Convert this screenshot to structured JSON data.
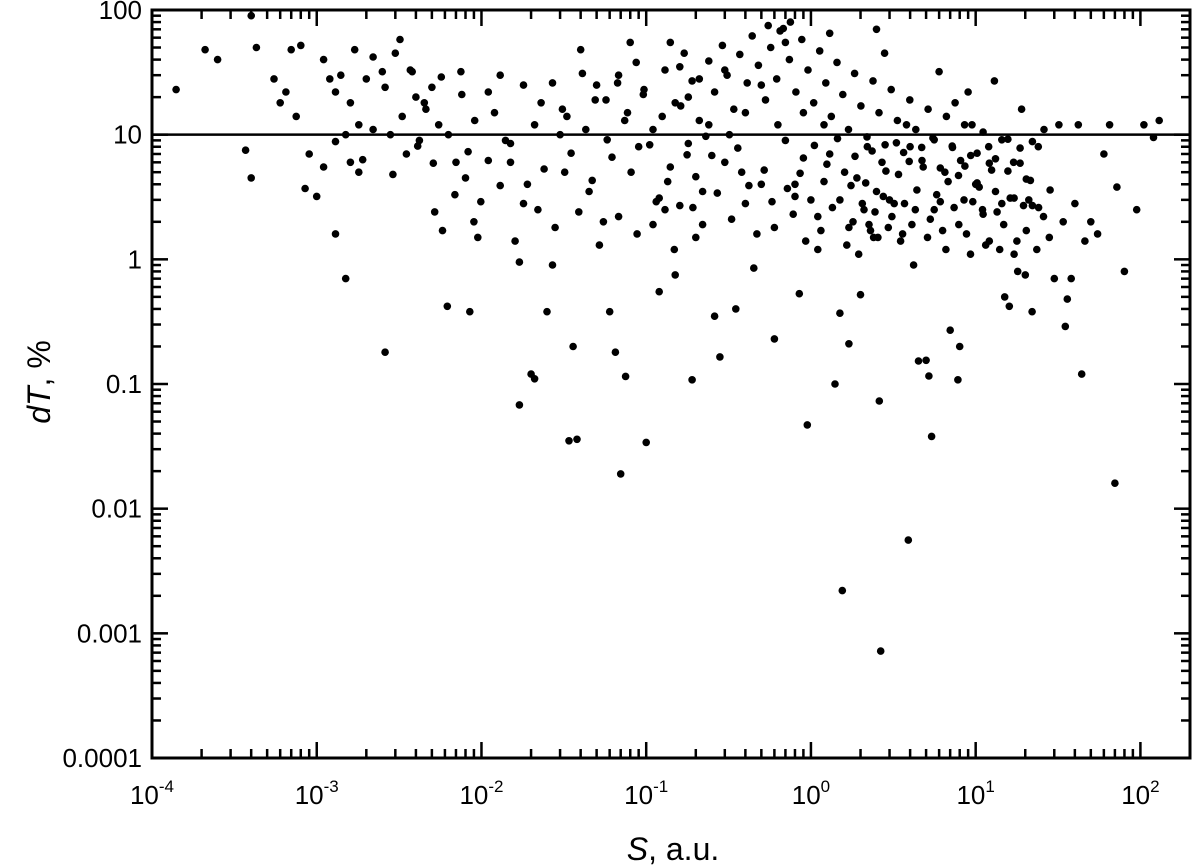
{
  "chart_data": {
    "type": "scatter",
    "xlabel": {
      "var": "S",
      "rest": ", a.u."
    },
    "ylabel": {
      "var": "dT",
      "rest": ", %"
    },
    "xscale": "log",
    "yscale": "log",
    "xlim": [
      0.0001,
      200
    ],
    "ylim": [
      0.0001,
      100
    ],
    "x_ticks": [
      {
        "base": "10",
        "exp": "-4"
      },
      {
        "base": "10",
        "exp": "-3"
      },
      {
        "base": "10",
        "exp": "-2"
      },
      {
        "base": "10",
        "exp": "-1"
      },
      {
        "base": "10",
        "exp": "0"
      },
      {
        "base": "10",
        "exp": "1"
      },
      {
        "base": "10",
        "exp": "2"
      }
    ],
    "y_ticks": [
      "0.0001",
      "0.001",
      "0.01",
      "0.1",
      "1",
      "10",
      "100"
    ],
    "reference_line": {
      "y": 10
    },
    "grid": false,
    "marker_color": "#000000",
    "points": [
      [
        0.00014,
        23
      ],
      [
        0.00021,
        48
      ],
      [
        0.00025,
        40
      ],
      [
        0.00037,
        7.5
      ],
      [
        0.0004,
        90
      ],
      [
        0.0004,
        4.5
      ],
      [
        0.00043,
        50
      ],
      [
        0.00055,
        28
      ],
      [
        0.0006,
        18
      ],
      [
        0.00065,
        22
      ],
      [
        0.0007,
        48
      ],
      [
        0.00075,
        14
      ],
      [
        0.0008,
        52
      ],
      [
        0.00085,
        3.7
      ],
      [
        0.0009,
        7
      ],
      [
        0.001,
        3.2
      ],
      [
        0.0011,
        40
      ],
      [
        0.0012,
        28
      ],
      [
        0.0013,
        22
      ],
      [
        0.0014,
        30
      ],
      [
        0.0015,
        10
      ],
      [
        0.0016,
        6
      ],
      [
        0.0017,
        48
      ],
      [
        0.0018,
        12
      ],
      [
        0.0013,
        1.6
      ],
      [
        0.0015,
        0.7
      ],
      [
        0.0018,
        5
      ],
      [
        0.002,
        28
      ],
      [
        0.0022,
        42
      ],
      [
        0.0025,
        32
      ],
      [
        0.0026,
        0.18
      ],
      [
        0.0028,
        10
      ],
      [
        0.003,
        45
      ],
      [
        0.0032,
        58
      ],
      [
        0.0035,
        7
      ],
      [
        0.0038,
        32
      ],
      [
        0.004,
        20
      ],
      [
        0.0042,
        9
      ],
      [
        0.0045,
        18
      ],
      [
        0.005,
        24
      ],
      [
        0.0052,
        2.4
      ],
      [
        0.0055,
        12
      ],
      [
        0.0058,
        1.7
      ],
      [
        0.0062,
        0.42
      ],
      [
        0.007,
        6
      ],
      [
        0.0075,
        32
      ],
      [
        0.008,
        4.5
      ],
      [
        0.0085,
        0.38
      ],
      [
        0.009,
        2
      ],
      [
        0.0095,
        1.5
      ],
      [
        0.011,
        22
      ],
      [
        0.012,
        15
      ],
      [
        0.013,
        30
      ],
      [
        0.014,
        9
      ],
      [
        0.015,
        6
      ],
      [
        0.016,
        1.4
      ],
      [
        0.017,
        0.95
      ],
      [
        0.017,
        0.068
      ],
      [
        0.018,
        25
      ],
      [
        0.019,
        4
      ],
      [
        0.02,
        0.12
      ],
      [
        0.021,
        0.11
      ],
      [
        0.022,
        2.5
      ],
      [
        0.023,
        18
      ],
      [
        0.025,
        0.38
      ],
      [
        0.027,
        0.9
      ],
      [
        0.03,
        10
      ],
      [
        0.032,
        5
      ],
      [
        0.034,
        0.035
      ],
      [
        0.036,
        0.2
      ],
      [
        0.038,
        0.036
      ],
      [
        0.04,
        48
      ],
      [
        0.045,
        3.5
      ],
      [
        0.05,
        25
      ],
      [
        0.055,
        2
      ],
      [
        0.06,
        0.38
      ],
      [
        0.065,
        0.18
      ],
      [
        0.068,
        30
      ],
      [
        0.07,
        0.019
      ],
      [
        0.075,
        0.115
      ],
      [
        0.08,
        55
      ],
      [
        0.09,
        8
      ],
      [
        0.1,
        0.034
      ],
      [
        0.11,
        1.9
      ],
      [
        0.12,
        0.55
      ],
      [
        0.13,
        2.5
      ],
      [
        0.14,
        55
      ],
      [
        0.15,
        0.75
      ],
      [
        0.16,
        35
      ],
      [
        0.18,
        20
      ],
      [
        0.19,
        0.108
      ],
      [
        0.2,
        1.5
      ],
      [
        0.22,
        3.5
      ],
      [
        0.24,
        12
      ],
      [
        0.26,
        0.35
      ],
      [
        0.28,
        0.165
      ],
      [
        0.3,
        33
      ],
      [
        0.32,
        10
      ],
      [
        0.35,
        0.4
      ],
      [
        0.38,
        5
      ],
      [
        0.4,
        15
      ],
      [
        0.45,
        0.85
      ],
      [
        0.5,
        25
      ],
      [
        0.55,
        75
      ],
      [
        0.6,
        0.23
      ],
      [
        0.65,
        68
      ],
      [
        0.7,
        55
      ],
      [
        0.75,
        80
      ],
      [
        0.8,
        4
      ],
      [
        0.85,
        0.53
      ],
      [
        0.9,
        15
      ],
      [
        0.95,
        0.047
      ],
      [
        1,
        3
      ],
      [
        1.1,
        1.2
      ],
      [
        1.2,
        12
      ],
      [
        1.3,
        65
      ],
      [
        1.4,
        0.1
      ],
      [
        1.5,
        0.37
      ],
      [
        1.55,
        0.0022
      ],
      [
        1.6,
        5
      ],
      [
        1.7,
        0.21
      ],
      [
        1.8,
        2
      ],
      [
        2,
        0.52
      ],
      [
        2.2,
        8
      ],
      [
        2.4,
        1.5
      ],
      [
        2.5,
        70
      ],
      [
        2.6,
        0.073
      ],
      [
        2.65,
        0.00072
      ],
      [
        2.8,
        45
      ],
      [
        3,
        3
      ],
      [
        3.2,
        2.8
      ],
      [
        3.5,
        1.4
      ],
      [
        3.8,
        12
      ],
      [
        3.9,
        0.0056
      ],
      [
        4,
        8
      ],
      [
        4.2,
        0.9
      ],
      [
        4.5,
        0.153
      ],
      [
        5,
        0.155
      ],
      [
        5.2,
        0.116
      ],
      [
        5.4,
        0.038
      ],
      [
        5.6,
        2.5
      ],
      [
        6,
        32
      ],
      [
        6.5,
        5
      ],
      [
        7,
        0.27
      ],
      [
        7.5,
        18
      ],
      [
        7.8,
        0.108
      ],
      [
        8,
        0.2
      ],
      [
        8.5,
        3
      ],
      [
        9,
        22
      ],
      [
        9.5,
        12
      ],
      [
        10,
        4
      ],
      [
        11,
        2.5
      ],
      [
        12,
        8
      ],
      [
        13,
        27
      ],
      [
        14,
        1.2
      ],
      [
        15,
        0.5
      ],
      [
        16,
        0.42
      ],
      [
        17,
        6
      ],
      [
        18,
        0.8
      ],
      [
        19,
        16
      ],
      [
        20,
        0.75
      ],
      [
        21,
        3
      ],
      [
        22,
        0.38
      ],
      [
        24,
        8
      ],
      [
        26,
        11
      ],
      [
        28,
        1.5
      ],
      [
        30,
        0.7
      ],
      [
        32,
        12
      ],
      [
        34,
        2
      ],
      [
        35,
        0.29
      ],
      [
        36,
        0.48
      ],
      [
        38,
        0.7
      ],
      [
        40,
        2.8
      ],
      [
        42,
        12
      ],
      [
        44,
        0.12
      ],
      [
        46,
        1.4
      ],
      [
        50,
        2
      ],
      [
        55,
        1.6
      ],
      [
        60,
        7
      ],
      [
        65,
        12
      ],
      [
        70,
        0.016
      ],
      [
        72,
        3.8
      ],
      [
        80,
        0.8
      ],
      [
        95,
        2.5
      ],
      [
        105,
        12
      ],
      [
        120,
        9.5
      ],
      [
        130,
        13
      ],
      [
        0.3,
        6
      ],
      [
        0.4,
        2.8
      ],
      [
        0.5,
        4
      ],
      [
        0.6,
        1.8
      ],
      [
        0.7,
        9
      ],
      [
        0.8,
        3.2
      ],
      [
        0.9,
        6.5
      ],
      [
        1.1,
        2.2
      ],
      [
        1.2,
        4.2
      ],
      [
        1.3,
        7
      ],
      [
        1.5,
        3
      ],
      [
        1.7,
        1.8
      ],
      [
        1.9,
        4.5
      ],
      [
        2.1,
        2.5
      ],
      [
        2.3,
        1.7
      ],
      [
        2.5,
        3.5
      ],
      [
        2.7,
        6
      ],
      [
        3.1,
        2.2
      ],
      [
        3.4,
        4.8
      ],
      [
        3.7,
        2.8
      ],
      [
        4.1,
        1.9
      ],
      [
        4.4,
        3.6
      ],
      [
        4.8,
        5.5
      ],
      [
        5.3,
        2.1
      ],
      [
        5.8,
        3.3
      ],
      [
        6.3,
        1.7
      ],
      [
        6.8,
        4.2
      ],
      [
        7.4,
        2.6
      ],
      [
        8.1,
        6.2
      ],
      [
        8.8,
        1.6
      ],
      [
        9.6,
        2.9
      ],
      [
        10.5,
        3.8
      ],
      [
        11.5,
        1.3
      ],
      [
        12.5,
        5.2
      ],
      [
        13.5,
        2.4
      ],
      [
        14.8,
        1.9
      ],
      [
        16.2,
        3.1
      ],
      [
        17.8,
        1.4
      ],
      [
        19.5,
        2.7
      ],
      [
        21.5,
        4.3
      ],
      [
        23.5,
        1.2
      ],
      [
        25.8,
        2.2
      ],
      [
        28.3,
        3.6
      ],
      [
        0.12,
        3.1
      ],
      [
        0.14,
        5.5
      ],
      [
        0.16,
        2.7
      ],
      [
        0.18,
        8.5
      ],
      [
        0.2,
        4.6
      ],
      [
        0.22,
        1.9
      ],
      [
        0.25,
        6.8
      ],
      [
        0.27,
        3.4
      ],
      [
        0.33,
        2.1
      ],
      [
        0.36,
        7.8
      ],
      [
        0.42,
        3.9
      ],
      [
        0.47,
        1.6
      ],
      [
        0.52,
        5.2
      ],
      [
        0.58,
        2.9
      ],
      [
        0.63,
        12
      ],
      [
        0.72,
        3.7
      ],
      [
        0.78,
        2.3
      ],
      [
        0.86,
        4.9
      ],
      [
        0.93,
        1.4
      ],
      [
        1.05,
        8.2
      ],
      [
        1.15,
        1.7
      ],
      [
        1.25,
        5.8
      ],
      [
        1.35,
        2.6
      ],
      [
        1.45,
        9.3
      ],
      [
        1.65,
        1.3
      ],
      [
        1.75,
        3.9
      ],
      [
        1.85,
        6.7
      ],
      [
        1.95,
        1.1
      ],
      [
        2.05,
        2.8
      ],
      [
        2.15,
        4.1
      ],
      [
        2.25,
        1.9
      ],
      [
        2.35,
        7.4
      ],
      [
        2.45,
        2.4
      ],
      [
        2.55,
        1.5
      ],
      [
        2.75,
        3.2
      ],
      [
        2.85,
        5.1
      ],
      [
        2.95,
        1.8
      ],
      [
        3.3,
        8.6
      ],
      [
        3.6,
        1.6
      ],
      [
        3.95,
        6.1
      ],
      [
        4.3,
        2.5
      ],
      [
        4.7,
        7.9
      ],
      [
        5.1,
        1.5
      ],
      [
        5.5,
        9.4
      ],
      [
        6.1,
        2.9
      ],
      [
        6.6,
        1.2
      ],
      [
        7.2,
        8.1
      ],
      [
        7.9,
        1.9
      ],
      [
        8.6,
        5.6
      ],
      [
        9.3,
        1.1
      ],
      [
        10.2,
        7.1
      ],
      [
        11.1,
        2.3
      ],
      [
        12.1,
        1.4
      ],
      [
        13.2,
        6.4
      ],
      [
        14.4,
        2.8
      ],
      [
        15.7,
        9.2
      ],
      [
        17.1,
        1.1
      ],
      [
        18.6,
        5.9
      ],
      [
        20.3,
        1.7
      ],
      [
        22.1,
        8.8
      ],
      [
        24.1,
        2.6
      ],
      [
        0.011,
        6.2
      ],
      [
        0.013,
        3.9
      ],
      [
        0.015,
        8.5
      ],
      [
        0.018,
        2.8
      ],
      [
        0.021,
        12
      ],
      [
        0.024,
        5.3
      ],
      [
        0.028,
        1.8
      ],
      [
        0.031,
        16
      ],
      [
        0.035,
        7.1
      ],
      [
        0.039,
        2.4
      ],
      [
        0.043,
        11
      ],
      [
        0.047,
        4.3
      ],
      [
        0.052,
        1.3
      ],
      [
        0.057,
        19
      ],
      [
        0.062,
        6.6
      ],
      [
        0.068,
        2.2
      ],
      [
        0.074,
        13
      ],
      [
        0.081,
        5
      ],
      [
        0.088,
        1.6
      ],
      [
        0.096,
        21
      ],
      [
        0.105,
        8.3
      ],
      [
        0.115,
        2.9
      ],
      [
        0.125,
        14
      ],
      [
        0.135,
        4.2
      ],
      [
        0.148,
        1.2
      ],
      [
        0.162,
        17
      ],
      [
        0.177,
        6.9
      ],
      [
        0.192,
        2.6
      ],
      [
        0.21,
        28
      ],
      [
        0.23,
        9.7
      ],
      [
        0.0011,
        5.5
      ],
      [
        0.0013,
        8.8
      ],
      [
        0.0016,
        18
      ],
      [
        0.0019,
        6.3
      ],
      [
        0.0022,
        11
      ],
      [
        0.0026,
        24
      ],
      [
        0.0029,
        4.8
      ],
      [
        0.0033,
        14
      ],
      [
        0.0037,
        33
      ],
      [
        0.0041,
        8.1
      ],
      [
        0.0046,
        16
      ],
      [
        0.0051,
        5.9
      ],
      [
        0.0057,
        29
      ],
      [
        0.0063,
        10
      ],
      [
        0.0069,
        3.3
      ],
      [
        0.0076,
        21
      ],
      [
        0.0083,
        7.3
      ],
      [
        0.0091,
        13
      ],
      [
        0.0099,
        2.9
      ],
      [
        0.027,
        26
      ],
      [
        0.033,
        14
      ],
      [
        0.041,
        31
      ],
      [
        0.049,
        19
      ],
      [
        0.058,
        9.1
      ],
      [
        0.067,
        26
      ],
      [
        0.077,
        15
      ],
      [
        0.087,
        38
      ],
      [
        0.097,
        23
      ],
      [
        0.11,
        11
      ],
      [
        0.13,
        33
      ],
      [
        0.15,
        18
      ],
      [
        0.17,
        45
      ],
      [
        0.19,
        27
      ],
      [
        0.21,
        13
      ],
      [
        0.24,
        39
      ],
      [
        0.26,
        22
      ],
      [
        0.29,
        52
      ],
      [
        0.31,
        30
      ],
      [
        0.34,
        16
      ],
      [
        0.37,
        44
      ],
      [
        0.41,
        26
      ],
      [
        0.44,
        62
      ],
      [
        0.48,
        36
      ],
      [
        0.53,
        19
      ],
      [
        0.57,
        50
      ],
      [
        0.62,
        28
      ],
      [
        0.68,
        71
      ],
      [
        0.74,
        40
      ],
      [
        0.81,
        22
      ],
      [
        0.88,
        58
      ],
      [
        0.96,
        33
      ],
      [
        1.04,
        18
      ],
      [
        1.13,
        47
      ],
      [
        1.23,
        26
      ],
      [
        1.33,
        14
      ],
      [
        1.44,
        38
      ],
      [
        1.56,
        21
      ],
      [
        1.69,
        11
      ],
      [
        1.84,
        31
      ],
      [
        2.01,
        17
      ],
      [
        2.19,
        9.6
      ],
      [
        2.38,
        27
      ],
      [
        2.59,
        15
      ],
      [
        2.82,
        8.3
      ],
      [
        3.07,
        23
      ],
      [
        3.35,
        13
      ],
      [
        3.65,
        7.2
      ],
      [
        3.98,
        19
      ],
      [
        4.33,
        11
      ],
      [
        4.72,
        6.2
      ],
      [
        5.14,
        16
      ],
      [
        5.6,
        9.1
      ],
      [
        6.1,
        5.4
      ],
      [
        6.64,
        14
      ],
      [
        7.23,
        7.9
      ],
      [
        7.87,
        4.7
      ],
      [
        8.57,
        12
      ],
      [
        9.33,
        6.8
      ],
      [
        10.2,
        4.1
      ],
      [
        11.1,
        10.5
      ],
      [
        12.1,
        5.9
      ],
      [
        13.2,
        3.5
      ],
      [
        14.4,
        9.1
      ],
      [
        15.7,
        5.1
      ],
      [
        17.1,
        3.1
      ],
      [
        18.6,
        7.8
      ],
      [
        20.3,
        4.4
      ],
      [
        22.1,
        2.7
      ]
    ]
  }
}
